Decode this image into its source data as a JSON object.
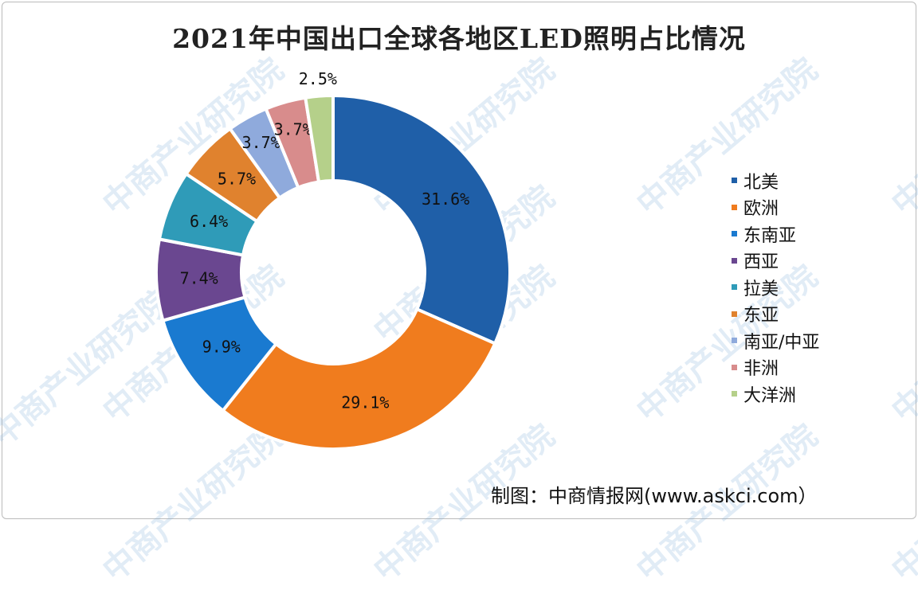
{
  "watermark": "中商产业研究院",
  "chart_data": {
    "type": "pie",
    "donut": true,
    "title": "2021年中国出口全球各地区LED照明占比情况",
    "unit": "%",
    "start": "top, clockwise",
    "legend_position": "right",
    "categories": [
      "北美",
      "欧洲",
      "东南亚",
      "西亚",
      "拉美",
      "东亚",
      "南亚/中亚",
      "非洲",
      "大洋洲"
    ],
    "values": [
      31.6,
      29.1,
      9.9,
      7.4,
      6.4,
      5.7,
      3.7,
      3.7,
      2.5
    ],
    "labels": [
      "31.6%",
      "29.1%",
      "9.9%",
      "7.4%",
      "6.4%",
      "5.7%",
      "3.7%",
      "3.7%",
      "2.5%"
    ],
    "colors": [
      "#1f5fa8",
      "#f07c1e",
      "#1a7ad0",
      "#6a4790",
      "#2f9bb8",
      "#e0822e",
      "#8faadc",
      "#d88c8c",
      "#b5d08a"
    ]
  },
  "source": "制图：中商情报网(www.askci.com）"
}
